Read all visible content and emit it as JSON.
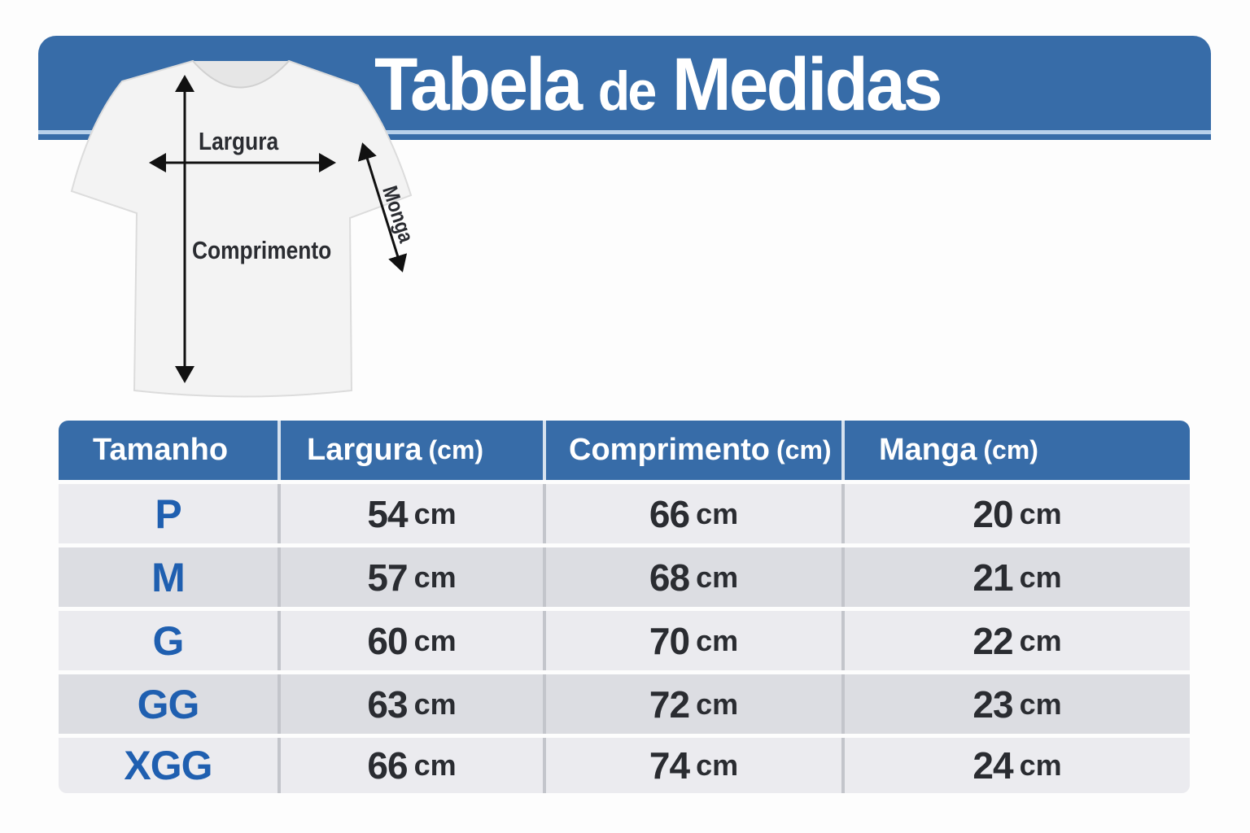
{
  "title": {
    "part1": "Tabela",
    "part2": "de",
    "part3": "Medidas"
  },
  "diagram": {
    "width_label": "Largura",
    "length_label": "Comprimento",
    "sleeve_label": "Monga"
  },
  "table": {
    "headers": [
      {
        "label": "Tamanho",
        "unit": ""
      },
      {
        "label": "Largura",
        "unit": "(cm)"
      },
      {
        "label": "Comprimento",
        "unit": "(cm)"
      },
      {
        "label": "Manga",
        "unit": "(cm)"
      }
    ],
    "unit": "cm",
    "rows": [
      {
        "size": "P",
        "largura": "54",
        "comprimento": "66",
        "manga": "20"
      },
      {
        "size": "M",
        "largura": "57",
        "comprimento": "68",
        "manga": "21"
      },
      {
        "size": "G",
        "largura": "60",
        "comprimento": "70",
        "manga": "22"
      },
      {
        "size": "GG",
        "largura": "63",
        "comprimento": "72",
        "manga": "23"
      },
      {
        "size": "XGG",
        "largura": "66",
        "comprimento": "74",
        "manga": "24"
      }
    ]
  },
  "colors": {
    "header_blue": "#376ca8",
    "size_blue": "#1f5fb0",
    "text_dark": "#2a2c31"
  }
}
